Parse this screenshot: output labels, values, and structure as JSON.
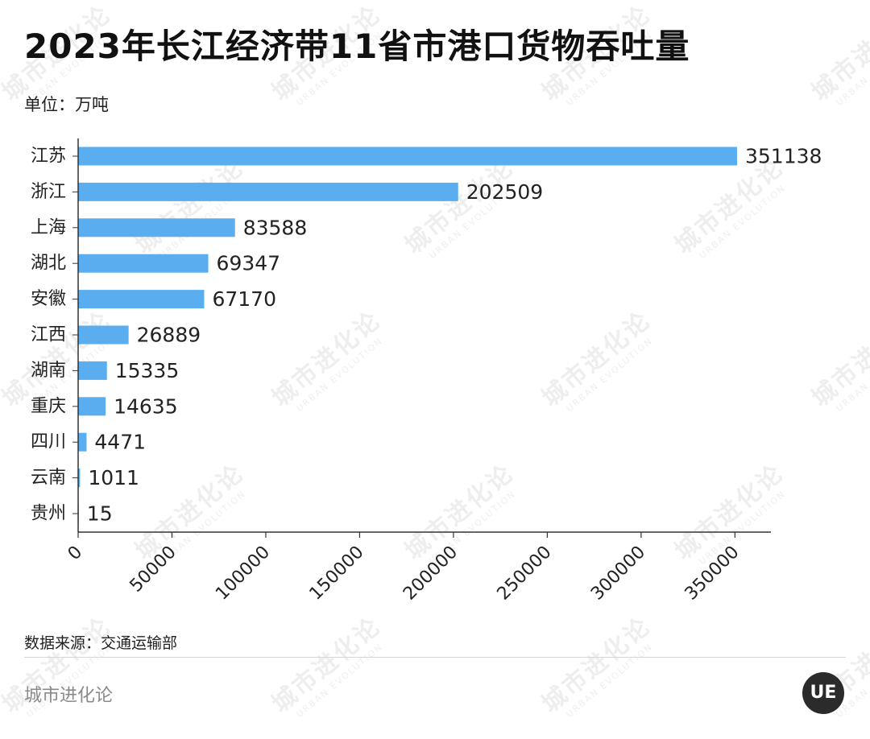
{
  "title": "2023年长江经济带11省市港口货物吞吐量",
  "unit_label": "单位：万吨",
  "source": "数据来源：交通运输部",
  "brand": "城市进化论",
  "logo_text": "UE",
  "watermark": {
    "cn": "城市进化论",
    "en": "URBAN EVOLUTION"
  },
  "colors": {
    "bar": "#5aaef0",
    "axis": "#333333",
    "text": "#222222"
  },
  "chart_data": {
    "type": "bar",
    "orientation": "horizontal",
    "categories": [
      "江苏",
      "浙江",
      "上海",
      "湖北",
      "安徽",
      "江西",
      "湖南",
      "重庆",
      "四川",
      "云南",
      "贵州"
    ],
    "values": [
      351138,
      202509,
      83588,
      69347,
      67170,
      26889,
      15335,
      14635,
      4471,
      1011,
      15
    ],
    "xlim": [
      0,
      370000
    ],
    "xticks": [
      0,
      50000,
      100000,
      150000,
      200000,
      250000,
      300000,
      350000
    ],
    "data_labels": true,
    "grid": false
  }
}
